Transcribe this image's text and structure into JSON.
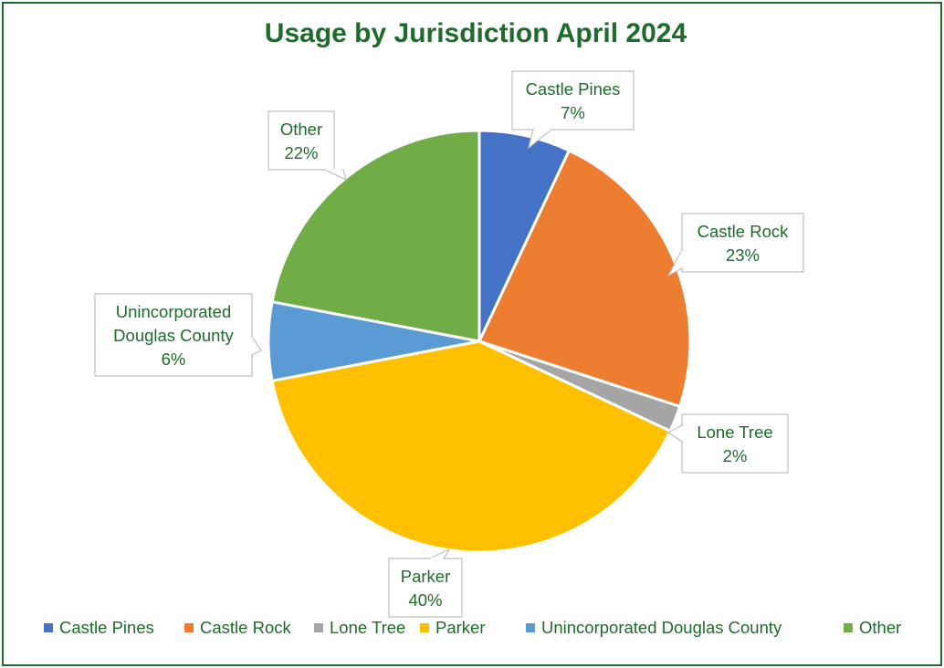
{
  "chart_data": {
    "type": "pie",
    "title": "Usage by Jurisdiction April 2024",
    "categories": [
      "Castle Pines",
      "Castle Rock",
      "Lone Tree",
      "Parker",
      "Unincorporated Douglas County",
      "Other"
    ],
    "values": [
      7,
      23,
      2,
      40,
      6,
      22
    ],
    "data_labels": [
      {
        "lines": [
          "Castle Pines",
          "7%"
        ]
      },
      {
        "lines": [
          "Castle Rock",
          "23%"
        ]
      },
      {
        "lines": [
          "Lone Tree",
          "2%"
        ]
      },
      {
        "lines": [
          "Parker",
          "40%"
        ]
      },
      {
        "lines": [
          "Unincorporated",
          "Douglas County",
          "6%"
        ]
      },
      {
        "lines": [
          "Other",
          "22%"
        ]
      }
    ],
    "colors": [
      "#4472c4",
      "#ed7d31",
      "#a5a5a5",
      "#ffc000",
      "#5b9bd5",
      "#70ad47"
    ],
    "legend_position": "bottom",
    "text_color": "#1e6b2b",
    "border_color": "#1e6b2b"
  }
}
